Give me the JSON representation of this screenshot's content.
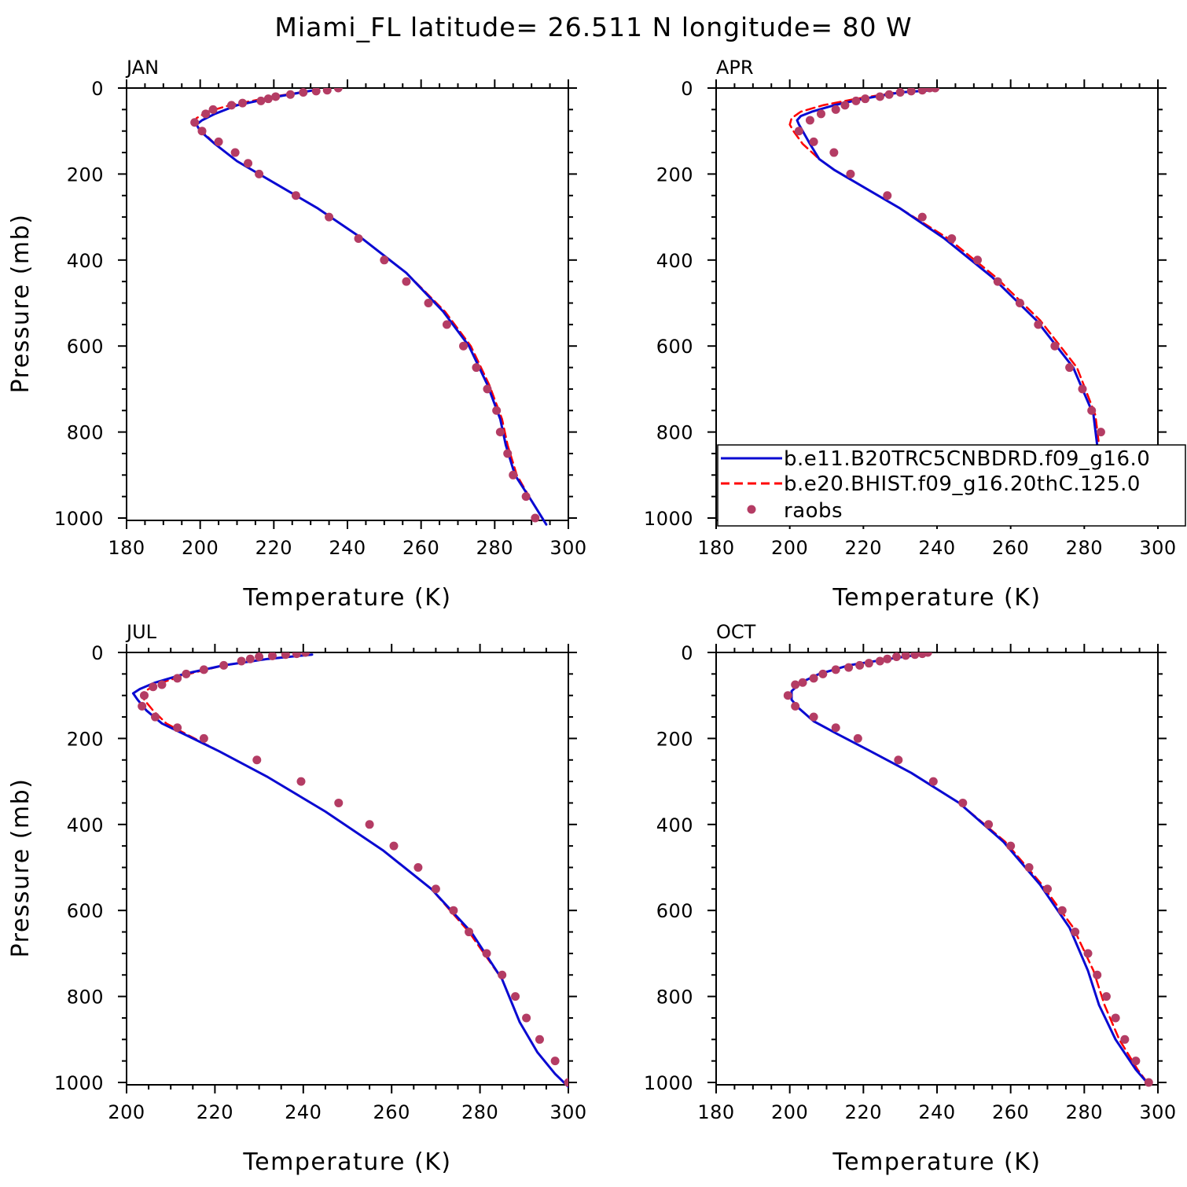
{
  "title": "Miami_FL  latitude= 26.511 N longitude= 80 W",
  "colors": {
    "blue": "#0a0ad2",
    "red": "#ff0000",
    "dots": "#b43c64",
    "axis": "#000000"
  },
  "chart_data": [
    {
      "type": "line",
      "panel": "JAN",
      "xlabel": "Temperature (K)",
      "ylabel": "Pressure (mb)",
      "xlim": [
        180,
        300
      ],
      "ylim": [
        0,
        1000
      ],
      "y_inverted": true,
      "xticks": [
        180,
        200,
        220,
        240,
        260,
        280,
        300
      ],
      "yticks": [
        0,
        200,
        400,
        600,
        800,
        1000
      ],
      "series": [
        {
          "name": "b.e11.B20TRC5CNBDRD.f09_g16.0",
          "style": "solid",
          "color": "#0a0ad2",
          "x": [
            231,
            221,
            210,
            204,
            200.5,
            199,
            200,
            204,
            210,
            220,
            232,
            244,
            256,
            266,
            273,
            278,
            281.5,
            283,
            285.5,
            290,
            294
          ],
          "y": [
            5,
            20,
            40,
            60,
            75,
            85,
            100,
            130,
            170,
            220,
            280,
            350,
            430,
            520,
            600,
            690,
            770,
            830,
            900,
            960,
            1015
          ]
        },
        {
          "name": "b.e20.BHIST.f09_g16.20thC.125.0",
          "style": "dashed",
          "color": "#ff0000",
          "x": [
            231,
            220,
            208,
            202,
            199,
            198.5,
            200.5,
            204,
            210,
            220,
            232,
            244,
            256,
            266.5,
            273.5,
            278.5,
            282,
            283.5,
            286,
            290,
            294
          ],
          "y": [
            5,
            20,
            40,
            55,
            70,
            85,
            100,
            130,
            170,
            220,
            280,
            350,
            430,
            520,
            600,
            690,
            770,
            830,
            900,
            960,
            1015
          ]
        },
        {
          "name": "raobs",
          "style": "dots",
          "color": "#b43c64",
          "x": [
            237.5,
            234.5,
            231.5,
            228,
            224.5,
            220.5,
            218.5,
            216.5,
            211.5,
            208.5,
            203.5,
            201.5,
            198.5,
            200.5,
            205,
            209.5,
            213,
            216,
            226,
            235,
            243,
            250,
            256,
            262,
            267,
            271.5,
            275,
            278,
            280.5,
            281.5,
            283.5,
            285,
            288.5,
            291
          ],
          "y": [
            0,
            5,
            7,
            10,
            15,
            20,
            25,
            30,
            35,
            40,
            50,
            60,
            80,
            100,
            125,
            150,
            175,
            200,
            250,
            300,
            350,
            400,
            450,
            500,
            550,
            600,
            650,
            700,
            750,
            800,
            850,
            900,
            950,
            1000
          ]
        }
      ]
    },
    {
      "type": "line",
      "panel": "APR",
      "xlabel": "Temperature (K)",
      "ylabel": "",
      "xlim": [
        180,
        300
      ],
      "ylim": [
        0,
        1000
      ],
      "y_inverted": true,
      "xticks": [
        180,
        200,
        220,
        240,
        260,
        280,
        300
      ],
      "yticks": [
        0,
        200,
        400,
        600,
        800,
        1000
      ],
      "legend": [
        "b.e11.B20TRC5CNBDRD.f09_g16.0",
        "b.e20.BHIST.f09_g16.20thC.125.0",
        "raobs"
      ],
      "series": [
        {
          "name": "b.e11.B20TRC5CNBDRD.f09_g16.0",
          "style": "solid",
          "color": "#0a0ad2",
          "x": [
            239,
            230,
            220,
            212,
            206,
            203,
            202,
            202.5,
            203.5,
            205.5,
            208,
            212,
            220,
            230,
            242,
            255,
            267,
            277,
            282.5,
            283.5,
            285.5,
            290.5,
            295.5
          ],
          "y": [
            5,
            10,
            25,
            40,
            55,
            65,
            75,
            85,
            100,
            130,
            165,
            190,
            230,
            280,
            350,
            440,
            540,
            650,
            760,
            830,
            900,
            960,
            1000
          ]
        },
        {
          "name": "b.e20.BHIST.f09_g16.20thC.125.0",
          "style": "dashed",
          "color": "#ff0000",
          "x": [
            239,
            229,
            218,
            209,
            203,
            200.5,
            200,
            201,
            203.5,
            208,
            212,
            220,
            230,
            243,
            256,
            268,
            278,
            283,
            284,
            286.5,
            291,
            295.5
          ],
          "y": [
            5,
            10,
            25,
            40,
            55,
            70,
            85,
            100,
            130,
            165,
            190,
            230,
            280,
            350,
            440,
            540,
            650,
            760,
            830,
            900,
            960,
            1000
          ]
        },
        {
          "name": "raobs",
          "style": "dots",
          "color": "#b43c64",
          "x": [
            239.5,
            238,
            236,
            233,
            230,
            227,
            224.5,
            220.5,
            218,
            215,
            212.5,
            208.5,
            205.5,
            202.5,
            206.5,
            212,
            216.5,
            226.5,
            236,
            244,
            251,
            256.5,
            262.5,
            267.5,
            272,
            276,
            279.5,
            282,
            284.5,
            285.5,
            288.5,
            292.5,
            295.5
          ],
          "y": [
            0,
            0,
            5,
            7,
            10,
            15,
            20,
            25,
            30,
            40,
            50,
            60,
            75,
            100,
            125,
            150,
            200,
            250,
            300,
            350,
            400,
            450,
            500,
            550,
            600,
            650,
            700,
            750,
            800,
            850,
            900,
            950,
            1000
          ]
        }
      ]
    },
    {
      "type": "line",
      "panel": "JUL",
      "xlabel": "Temperature (K)",
      "ylabel": "Pressure (mb)",
      "xlim": [
        200,
        300
      ],
      "ylim": [
        0,
        1000
      ],
      "y_inverted": true,
      "xticks": [
        200,
        220,
        240,
        260,
        280,
        300
      ],
      "yticks": [
        0,
        200,
        400,
        600,
        800,
        1000
      ],
      "series": [
        {
          "name": "b.e11.B20TRC5CNBDRD.f09_g16.0",
          "style": "solid",
          "color": "#0a0ad2",
          "x": [
            242,
            232,
            222,
            213,
            206.5,
            203,
            201.5,
            202.5,
            204.5,
            208,
            213,
            221,
            232,
            245,
            258,
            269,
            278,
            285,
            289,
            293,
            297,
            300
          ],
          "y": [
            5,
            15,
            30,
            50,
            70,
            85,
            95,
            110,
            135,
            165,
            190,
            230,
            290,
            370,
            460,
            550,
            650,
            760,
            860,
            930,
            980,
            1010
          ]
        },
        {
          "name": "b.e20.BHIST.f09_g16.20thC.125.0",
          "style": "dashed",
          "color": "#ff0000",
          "x": [
            242,
            232,
            222,
            214,
            208,
            205,
            203.5,
            204,
            206,
            209,
            213.5,
            221,
            232,
            245,
            258,
            269,
            277.5,
            285,
            289,
            293,
            297,
            300
          ],
          "y": [
            5,
            15,
            30,
            50,
            70,
            85,
            95,
            110,
            135,
            165,
            190,
            230,
            290,
            370,
            460,
            550,
            650,
            760,
            860,
            930,
            980,
            1010
          ]
        },
        {
          "name": "raobs",
          "style": "dots",
          "color": "#b43c64",
          "x": [
            240.5,
            238.5,
            236,
            233,
            230,
            228,
            226,
            222,
            217.5,
            213.5,
            211.5,
            208,
            206,
            204,
            203.5,
            206.5,
            211.5,
            217.5,
            229.5,
            239.5,
            248,
            255,
            260.5,
            266,
            270,
            274,
            277.5,
            281.5,
            285,
            288,
            290.5,
            293.5,
            297,
            300
          ],
          "y": [
            0,
            3,
            5,
            8,
            10,
            15,
            20,
            30,
            40,
            50,
            60,
            75,
            80,
            100,
            125,
            150,
            175,
            200,
            250,
            300,
            350,
            400,
            450,
            500,
            550,
            600,
            650,
            700,
            750,
            800,
            850,
            900,
            950,
            1000
          ]
        }
      ]
    },
    {
      "type": "line",
      "panel": "OCT",
      "xlabel": "Temperature (K)",
      "ylabel": "",
      "xlim": [
        180,
        300
      ],
      "ylim": [
        0,
        1000
      ],
      "y_inverted": true,
      "xticks": [
        180,
        200,
        220,
        240,
        260,
        280,
        300
      ],
      "yticks": [
        0,
        200,
        400,
        600,
        800,
        1000
      ],
      "series": [
        {
          "name": "b.e11.B20TRC5CNBDRD.f09_g16.0",
          "style": "solid",
          "color": "#0a0ad2",
          "x": [
            237,
            227,
            216,
            208,
            203,
            200.5,
            200.5,
            202.5,
            206.5,
            213,
            222,
            233,
            246,
            258,
            268,
            276,
            281,
            284,
            288.5,
            294,
            297.5
          ],
          "y": [
            3,
            15,
            30,
            50,
            70,
            90,
            110,
            130,
            160,
            190,
            230,
            280,
            350,
            440,
            540,
            640,
            740,
            820,
            900,
            970,
            1005
          ]
        },
        {
          "name": "b.e20.BHIST.f09_g16.20thC.125.0",
          "style": "dashed",
          "color": "#ff0000",
          "x": [
            237,
            227,
            216,
            208,
            203,
            200.5,
            200.5,
            202.5,
            206.5,
            213,
            222,
            233,
            246,
            258.5,
            268.5,
            277,
            282.5,
            285.5,
            289.5,
            294.5,
            297.5
          ],
          "y": [
            3,
            15,
            30,
            50,
            70,
            90,
            110,
            130,
            160,
            190,
            230,
            280,
            350,
            440,
            540,
            640,
            740,
            820,
            900,
            970,
            1005
          ]
        },
        {
          "name": "raobs",
          "style": "dots",
          "color": "#b43c64",
          "x": [
            237.5,
            236,
            234,
            231.5,
            229,
            226.5,
            224.5,
            221.5,
            219,
            216,
            212.5,
            209,
            206.5,
            203.5,
            201.5,
            199.5,
            201.5,
            206.5,
            212.5,
            218.5,
            229.5,
            239,
            247,
            254,
            260,
            265,
            270,
            274,
            277.5,
            281,
            283.5,
            286,
            288.5,
            291,
            294,
            297.5
          ],
          "y": [
            0,
            3,
            5,
            7,
            10,
            15,
            20,
            25,
            30,
            35,
            40,
            50,
            60,
            70,
            75,
            100,
            125,
            150,
            175,
            200,
            250,
            300,
            350,
            400,
            450,
            500,
            550,
            600,
            650,
            700,
            750,
            800,
            850,
            900,
            950,
            1000
          ]
        }
      ]
    }
  ]
}
